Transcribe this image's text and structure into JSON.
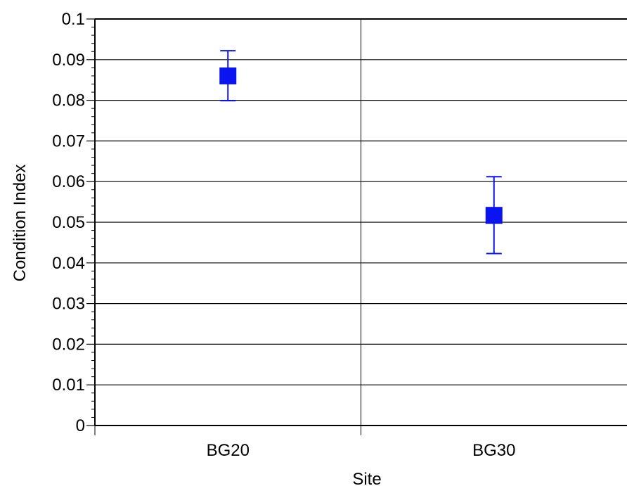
{
  "chart_data": {
    "type": "scatter",
    "xlabel": "Site",
    "ylabel": "Condition Index",
    "categories": [
      "BG20",
      "BG30"
    ],
    "series": [
      {
        "values": [
          0.086,
          0.0517
        ],
        "error_low": [
          0.0799,
          0.0423
        ],
        "error_high": [
          0.0922,
          0.0612
        ]
      }
    ],
    "ylim": [
      0,
      0.1
    ],
    "y_ticks": [
      "0",
      "0.01",
      "0.02",
      "0.03",
      "0.04",
      "0.05",
      "0.06",
      "0.07",
      "0.08",
      "0.09",
      "0.1"
    ],
    "grid": true,
    "marker": "square",
    "colors": {
      "marker": "#0a14f0",
      "grid": "#000000"
    }
  }
}
